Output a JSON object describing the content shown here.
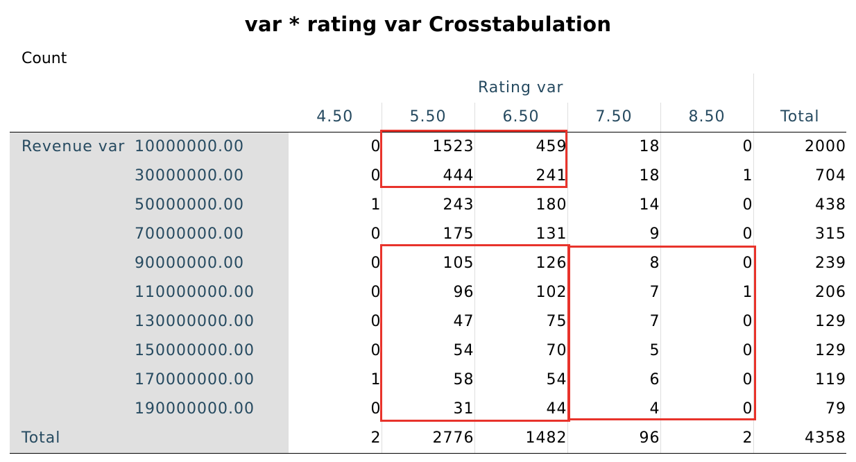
{
  "title": "var * rating var Crosstabulation",
  "subtitle": "Count",
  "column_group": "Rating var",
  "columns": [
    "4.50",
    "5.50",
    "6.50",
    "7.50",
    "8.50"
  ],
  "total_label": "Total",
  "row_group": "Revenue var",
  "rows": [
    {
      "label": "10000000.00",
      "values": [
        "0",
        "1523",
        "459",
        "18",
        "0"
      ],
      "total": "2000"
    },
    {
      "label": "30000000.00",
      "values": [
        "0",
        "444",
        "241",
        "18",
        "1"
      ],
      "total": "704"
    },
    {
      "label": "50000000.00",
      "values": [
        "1",
        "243",
        "180",
        "14",
        "0"
      ],
      "total": "438"
    },
    {
      "label": "70000000.00",
      "values": [
        "0",
        "175",
        "131",
        "9",
        "0"
      ],
      "total": "315"
    },
    {
      "label": "90000000.00",
      "values": [
        "0",
        "105",
        "126",
        "8",
        "0"
      ],
      "total": "239"
    },
    {
      "label": "110000000.00",
      "values": [
        "0",
        "96",
        "102",
        "7",
        "1"
      ],
      "total": "206"
    },
    {
      "label": "130000000.00",
      "values": [
        "0",
        "47",
        "75",
        "7",
        "0"
      ],
      "total": "129"
    },
    {
      "label": "150000000.00",
      "values": [
        "0",
        "54",
        "70",
        "5",
        "0"
      ],
      "total": "129"
    },
    {
      "label": "170000000.00",
      "values": [
        "1",
        "58",
        "54",
        "6",
        "0"
      ],
      "total": "119"
    },
    {
      "label": "190000000.00",
      "values": [
        "0",
        "31",
        "44",
        "4",
        "0"
      ],
      "total": "79"
    }
  ],
  "total_row": {
    "label": "Total",
    "values": [
      "2",
      "2776",
      "1482",
      "96",
      "2"
    ],
    "total": "4358"
  },
  "highlight_color": "#e8332b"
}
